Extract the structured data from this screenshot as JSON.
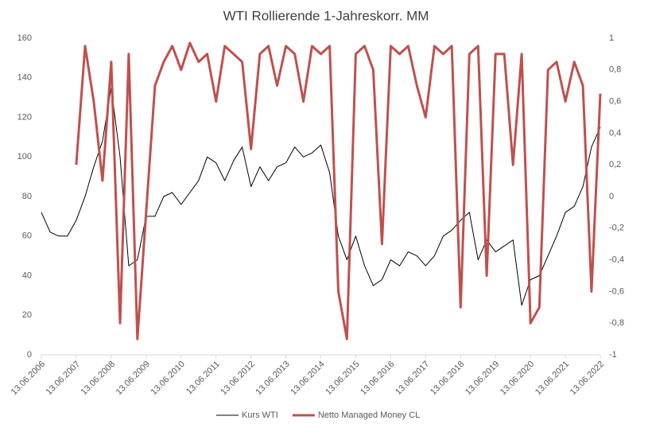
{
  "chart_data": {
    "type": "line",
    "title": "WTI Rollierende 1-Jahreskorr. MM",
    "x": [
      "13.06.2006",
      "13.09.2006",
      "13.12.2006",
      "13.03.2007",
      "13.06.2007",
      "13.09.2007",
      "13.12.2007",
      "13.03.2008",
      "13.06.2008",
      "13.09.2008",
      "13.12.2008",
      "13.03.2009",
      "13.06.2009",
      "13.09.2009",
      "13.12.2009",
      "13.03.2010",
      "13.06.2010",
      "13.09.2010",
      "13.12.2010",
      "13.03.2011",
      "13.06.2011",
      "13.09.2011",
      "13.12.2011",
      "13.03.2012",
      "13.06.2012",
      "13.09.2012",
      "13.12.2012",
      "13.03.2013",
      "13.06.2013",
      "13.09.2013",
      "13.12.2013",
      "13.03.2014",
      "13.06.2014",
      "13.09.2014",
      "13.12.2014",
      "13.03.2015",
      "13.06.2015",
      "13.09.2015",
      "13.12.2015",
      "13.03.2016",
      "13.06.2016",
      "13.09.2016",
      "13.12.2016",
      "13.03.2017",
      "13.06.2017",
      "13.09.2017",
      "13.12.2017",
      "13.03.2018",
      "13.06.2018",
      "13.09.2018",
      "13.12.2018",
      "13.03.2019",
      "13.06.2019",
      "13.09.2019",
      "13.12.2019",
      "13.03.2020",
      "13.06.2020",
      "13.09.2020",
      "13.12.2020",
      "13.03.2021",
      "13.06.2021",
      "13.09.2021",
      "13.12.2021",
      "13.03.2022",
      "13.06.2022"
    ],
    "series": [
      {
        "name": "Kurs WTI",
        "color": "#000000",
        "axis": "y",
        "width": 1,
        "values": [
          72,
          62,
          60,
          60,
          68,
          80,
          95,
          108,
          135,
          100,
          45,
          48,
          70,
          70,
          80,
          82,
          76,
          82,
          88,
          100,
          97,
          88,
          98,
          105,
          85,
          95,
          88,
          95,
          97,
          105,
          100,
          102,
          106,
          92,
          60,
          48,
          60,
          45,
          35,
          38,
          48,
          45,
          52,
          50,
          45,
          50,
          60,
          63,
          68,
          72,
          48,
          58,
          52,
          55,
          58,
          25,
          38,
          40,
          50,
          60,
          72,
          75,
          85,
          105,
          115
        ]
      },
      {
        "name": "Netto Managed Money CL",
        "color": "#c0504d",
        "axis": "y2",
        "width": 3,
        "values": [
          null,
          null,
          null,
          null,
          0.2,
          0.95,
          0.6,
          0.1,
          0.85,
          -0.8,
          0.9,
          -0.9,
          -0.1,
          0.7,
          0.85,
          0.95,
          0.8,
          0.97,
          0.85,
          0.9,
          0.6,
          0.95,
          0.9,
          0.85,
          0.3,
          0.9,
          0.95,
          0.7,
          0.95,
          0.9,
          0.6,
          0.95,
          0.9,
          0.95,
          -0.6,
          -0.9,
          0.9,
          0.95,
          0.8,
          -0.3,
          0.95,
          0.9,
          0.95,
          0.7,
          0.5,
          0.95,
          0.9,
          0.95,
          -0.7,
          0.9,
          0.95,
          -0.5,
          0.9,
          0.9,
          0.2,
          0.9,
          -0.8,
          -0.7,
          0.8,
          0.85,
          0.6,
          0.85,
          0.7,
          -0.6,
          0.65
        ]
      }
    ],
    "xlim": [
      "13.06.2006",
      "13.06.2022"
    ],
    "xticks": [
      "13.06.2006",
      "13.06.2007",
      "13.06.2008",
      "13.06.2009",
      "13.06.2010",
      "13.06.2011",
      "13.06.2012",
      "13.06.2013",
      "13.06.2014",
      "13.06.2015",
      "13.06.2016",
      "13.06.2017",
      "13.06.2018",
      "13.06.2019",
      "13.06.2020",
      "13.06.2021",
      "13.06.2022"
    ],
    "ylim": [
      0,
      160
    ],
    "yticks": [
      0,
      20,
      40,
      60,
      80,
      100,
      120,
      140,
      160
    ],
    "y2lim": [
      -1,
      1
    ],
    "y2ticks": [
      {
        "value": -1,
        "label": "-1"
      },
      {
        "value": -0.8,
        "label": "-0,8"
      },
      {
        "value": -0.6,
        "label": "-0,6"
      },
      {
        "value": -0.4,
        "label": "-0,4"
      },
      {
        "value": -0.2,
        "label": "-0,2"
      },
      {
        "value": 0,
        "label": "0"
      },
      {
        "value": 0.2,
        "label": "0,2"
      },
      {
        "value": 0.4,
        "label": "0,4"
      },
      {
        "value": 0.6,
        "label": "0,6"
      },
      {
        "value": 0.8,
        "label": "0,8"
      },
      {
        "value": 1,
        "label": "1"
      }
    ],
    "legend": "bottom"
  }
}
